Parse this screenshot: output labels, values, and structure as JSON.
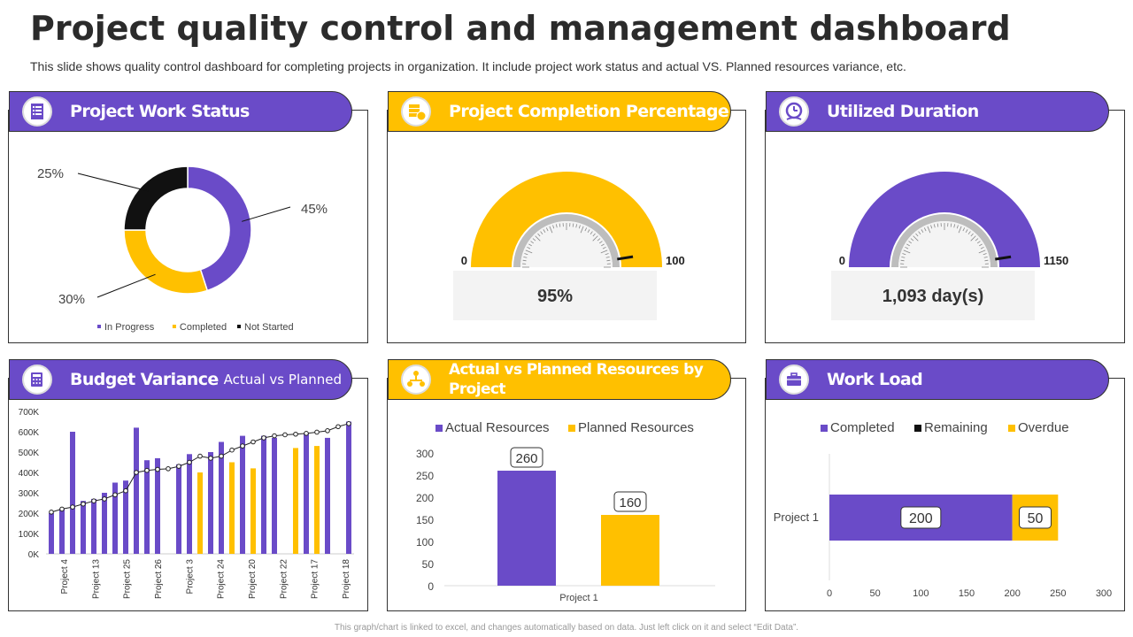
{
  "page": {
    "title": "Project quality control and management dashboard",
    "subtitle": "This slide shows quality control dashboard for completing projects in organization. It include project work status and actual VS. Planned resources variance, etc.",
    "footer": "This graph/chart is linked to excel, and changes automatically based on data. Just left click on it and select “Edit Data”."
  },
  "panels": {
    "work_status": "Project Work Status",
    "completion": "Project Completion Percentage",
    "duration": "Utilized Duration",
    "budget": "Budget Variance",
    "budget_sub": "Actual vs Planned",
    "resources": "Actual vs Planned Resources by Project",
    "workload": "Work Load"
  },
  "colors": {
    "purple": "#6a4bc8",
    "yellow": "#ffc000",
    "black": "#111111",
    "gray": "#f3f3f3"
  },
  "icons": [
    "checklist-icon",
    "server-coin-icon",
    "clock-icon",
    "calculator-icon",
    "network-people-icon",
    "briefcase-icon"
  ],
  "chart_data": [
    {
      "id": "work_status",
      "type": "pie",
      "donut": true,
      "slices": [
        {
          "name": "In Progress",
          "value": 45,
          "label": "45%",
          "color": "#6a4bc8"
        },
        {
          "name": "Completed",
          "value": 30,
          "label": "30%",
          "color": "#ffc000"
        },
        {
          "name": "Not Started",
          "value": 25,
          "label": "25%",
          "color": "#111111"
        }
      ],
      "legend": "bottom"
    },
    {
      "id": "completion",
      "type": "gauge",
      "min": 0,
      "max": 100,
      "value": 95,
      "min_label": "0",
      "max_label": "100",
      "value_label": "95%",
      "color": "#ffc000"
    },
    {
      "id": "duration",
      "type": "gauge",
      "min": 0,
      "max": 1150,
      "value": 1093,
      "min_label": "0",
      "max_label": "1150",
      "value_label": "1,093 day(s)",
      "color": "#6a4bc8"
    },
    {
      "id": "budget",
      "type": "bar",
      "ylim": [
        0,
        700000
      ],
      "yticks": [
        "0K",
        "100K",
        "200K",
        "300K",
        "400K",
        "500K",
        "600K",
        "700K"
      ],
      "xtick_labels": [
        "Project 4",
        "Project 13",
        "Project 25",
        "Project 26",
        "Project 3",
        "Project 24",
        "Project 20",
        "Project 22",
        "Project 17",
        "Project 18"
      ],
      "bars": [
        {
          "value": 200000,
          "color": "purple"
        },
        {
          "value": 220000,
          "color": "purple"
        },
        {
          "value": 600000,
          "color": "purple"
        },
        {
          "value": 260000,
          "color": "purple"
        },
        {
          "value": 270000,
          "color": "purple"
        },
        {
          "value": 300000,
          "color": "purple"
        },
        {
          "value": 350000,
          "color": "purple"
        },
        {
          "value": 360000,
          "color": "purple"
        },
        {
          "value": 620000,
          "color": "purple"
        },
        {
          "value": 460000,
          "color": "purple"
        },
        {
          "value": 470000,
          "color": "purple"
        },
        {
          "value": 0,
          "color": "purple"
        },
        {
          "value": 440000,
          "color": "purple"
        },
        {
          "value": 490000,
          "color": "purple"
        },
        {
          "value": 400000,
          "color": "yellow"
        },
        {
          "value": 500000,
          "color": "purple"
        },
        {
          "value": 550000,
          "color": "purple"
        },
        {
          "value": 450000,
          "color": "yellow"
        },
        {
          "value": 580000,
          "color": "purple"
        },
        {
          "value": 420000,
          "color": "yellow"
        },
        {
          "value": 580000,
          "color": "purple"
        },
        {
          "value": 570000,
          "color": "purple"
        },
        {
          "value": 0,
          "color": "purple"
        },
        {
          "value": 520000,
          "color": "yellow"
        },
        {
          "value": 590000,
          "color": "purple"
        },
        {
          "value": 530000,
          "color": "yellow"
        },
        {
          "value": 570000,
          "color": "purple"
        },
        {
          "value": 0,
          "color": "purple"
        },
        {
          "value": 650000,
          "color": "purple"
        }
      ],
      "line": [
        205000,
        220000,
        230000,
        245000,
        260000,
        270000,
        290000,
        310000,
        400000,
        410000,
        415000,
        418000,
        430000,
        450000,
        480000,
        470000,
        480000,
        510000,
        530000,
        550000,
        570000,
        580000,
        585000,
        588000,
        592000,
        598000,
        605000,
        625000,
        640000
      ]
    },
    {
      "id": "resources",
      "type": "bar",
      "categories": [
        "Project 1"
      ],
      "series": [
        {
          "name": "Actual Resources",
          "values": [
            260
          ],
          "color": "#6a4bc8"
        },
        {
          "name": "Planned Resources",
          "values": [
            160
          ],
          "color": "#ffc000"
        }
      ],
      "ylim": [
        0,
        300
      ],
      "yticks": [
        0,
        50,
        100,
        150,
        200,
        250,
        300
      ],
      "legend": "top"
    },
    {
      "id": "workload",
      "type": "bar",
      "orientation": "horizontal",
      "stacked": true,
      "categories": [
        "Project 1"
      ],
      "series": [
        {
          "name": "Completed",
          "values": [
            200
          ],
          "color": "#6a4bc8"
        },
        {
          "name": "Remaining",
          "values": [
            0
          ],
          "color": "#111111"
        },
        {
          "name": "Overdue",
          "values": [
            50
          ],
          "color": "#ffc000"
        }
      ],
      "xlim": [
        0,
        300
      ],
      "xticks": [
        0,
        50,
        100,
        150,
        200,
        250,
        300
      ],
      "legend": "top"
    }
  ]
}
